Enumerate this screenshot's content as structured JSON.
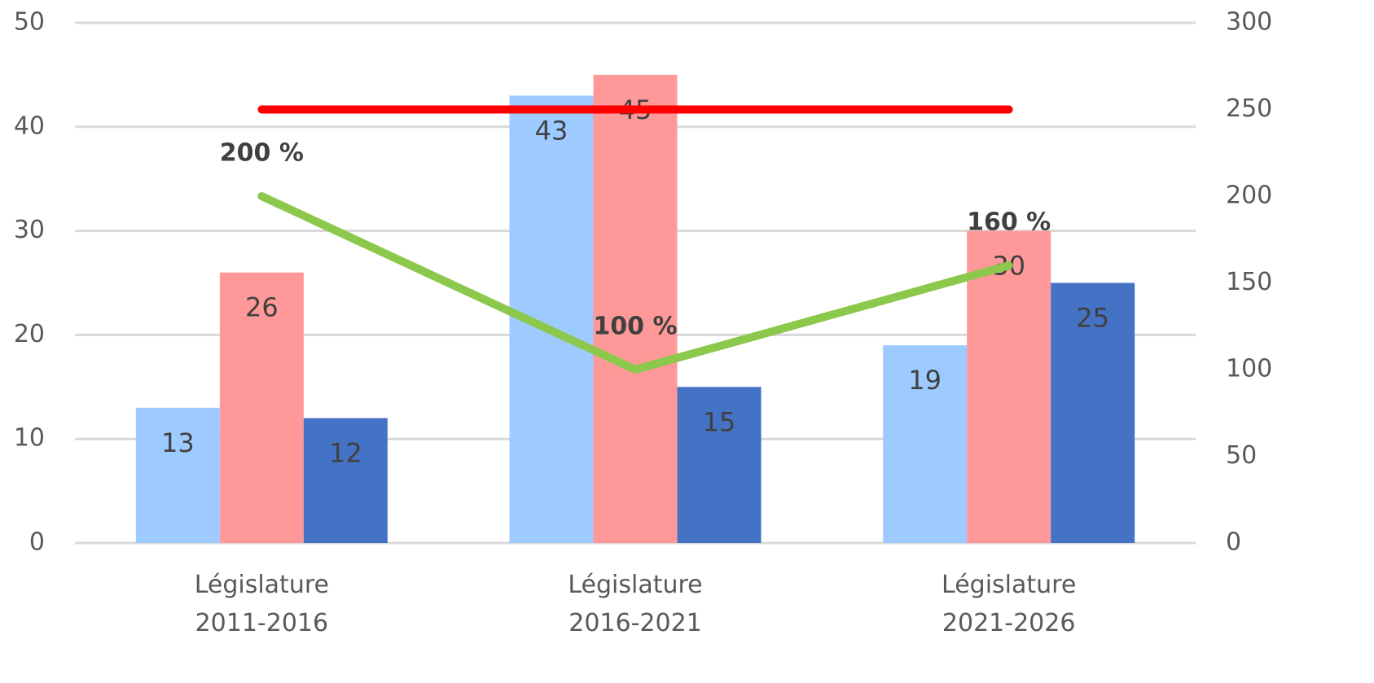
{
  "chart_data": {
    "type": "bar",
    "categories": [
      "Législature\n2011-2016",
      "Législature\n2016-2021",
      "Législature\n2021-2026"
    ],
    "series": [
      {
        "type": "bar",
        "color": "#9dcbff",
        "values": [
          13,
          43,
          19
        ]
      },
      {
        "type": "bar",
        "color": "#ff9999",
        "values": [
          26,
          45,
          30
        ]
      },
      {
        "type": "bar",
        "color": "#4472c4",
        "values": [
          12,
          15,
          25
        ]
      },
      {
        "type": "line",
        "axis": "y2",
        "color": "#8cc84b",
        "values": [
          200,
          100,
          160
        ],
        "value_labels": [
          "200 %",
          "100 %",
          "160 %"
        ]
      },
      {
        "type": "line",
        "axis": "y2",
        "color": "#ff0000",
        "values": [
          250,
          250,
          250
        ]
      }
    ],
    "ylim": [
      0,
      50
    ],
    "yticks": [
      0,
      10,
      20,
      30,
      40,
      50
    ],
    "y2lim": [
      0,
      300
    ],
    "y2ticks": [
      0,
      50,
      100,
      150,
      200,
      250,
      300
    ],
    "grid": true
  }
}
